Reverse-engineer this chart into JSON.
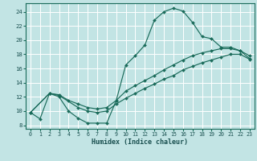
{
  "xlabel": "Humidex (Indice chaleur)",
  "xlim": [
    -0.5,
    23.5
  ],
  "ylim": [
    7.5,
    25.2
  ],
  "yticks": [
    8,
    10,
    12,
    14,
    16,
    18,
    20,
    22,
    24
  ],
  "xticks": [
    0,
    1,
    2,
    3,
    4,
    5,
    6,
    7,
    8,
    9,
    10,
    11,
    12,
    13,
    14,
    15,
    16,
    17,
    18,
    19,
    20,
    21,
    22,
    23
  ],
  "bg_color": "#c2e4e4",
  "grid_color": "#afd4d4",
  "line_color": "#1a6b5a",
  "line1_x": [
    0,
    1,
    2,
    3,
    4,
    5,
    6,
    7,
    8,
    9,
    10,
    11,
    12,
    13,
    14,
    15,
    16,
    17,
    18,
    19,
    20,
    21,
    22,
    23
  ],
  "line1_y": [
    9.8,
    8.9,
    12.5,
    12.0,
    10.0,
    9.0,
    8.3,
    8.3,
    8.3,
    11.5,
    16.5,
    17.8,
    19.3,
    22.8,
    24.0,
    24.5,
    24.1,
    22.5,
    20.5,
    20.2,
    19.0,
    19.0,
    18.5,
    17.4
  ],
  "line2_x": [
    0,
    2,
    3,
    5,
    6,
    7,
    8,
    9,
    10,
    11,
    12,
    13,
    14,
    15,
    16,
    17,
    18,
    19,
    20,
    21,
    22,
    23
  ],
  "line2_y": [
    9.8,
    12.5,
    12.2,
    10.5,
    10.0,
    9.8,
    10.0,
    11.0,
    11.8,
    12.5,
    13.2,
    13.8,
    14.5,
    15.0,
    15.8,
    16.3,
    16.8,
    17.2,
    17.6,
    18.0,
    18.0,
    17.3
  ],
  "line3_x": [
    0,
    2,
    3,
    4,
    5,
    6,
    7,
    8,
    9,
    10,
    11,
    12,
    13,
    14,
    15,
    16,
    17,
    18,
    19,
    20,
    21,
    22,
    23
  ],
  "line3_y": [
    9.8,
    12.5,
    12.3,
    11.5,
    11.0,
    10.5,
    10.3,
    10.5,
    11.5,
    12.8,
    13.6,
    14.3,
    15.0,
    15.8,
    16.5,
    17.2,
    17.8,
    18.2,
    18.5,
    18.8,
    18.8,
    18.5,
    17.8
  ]
}
